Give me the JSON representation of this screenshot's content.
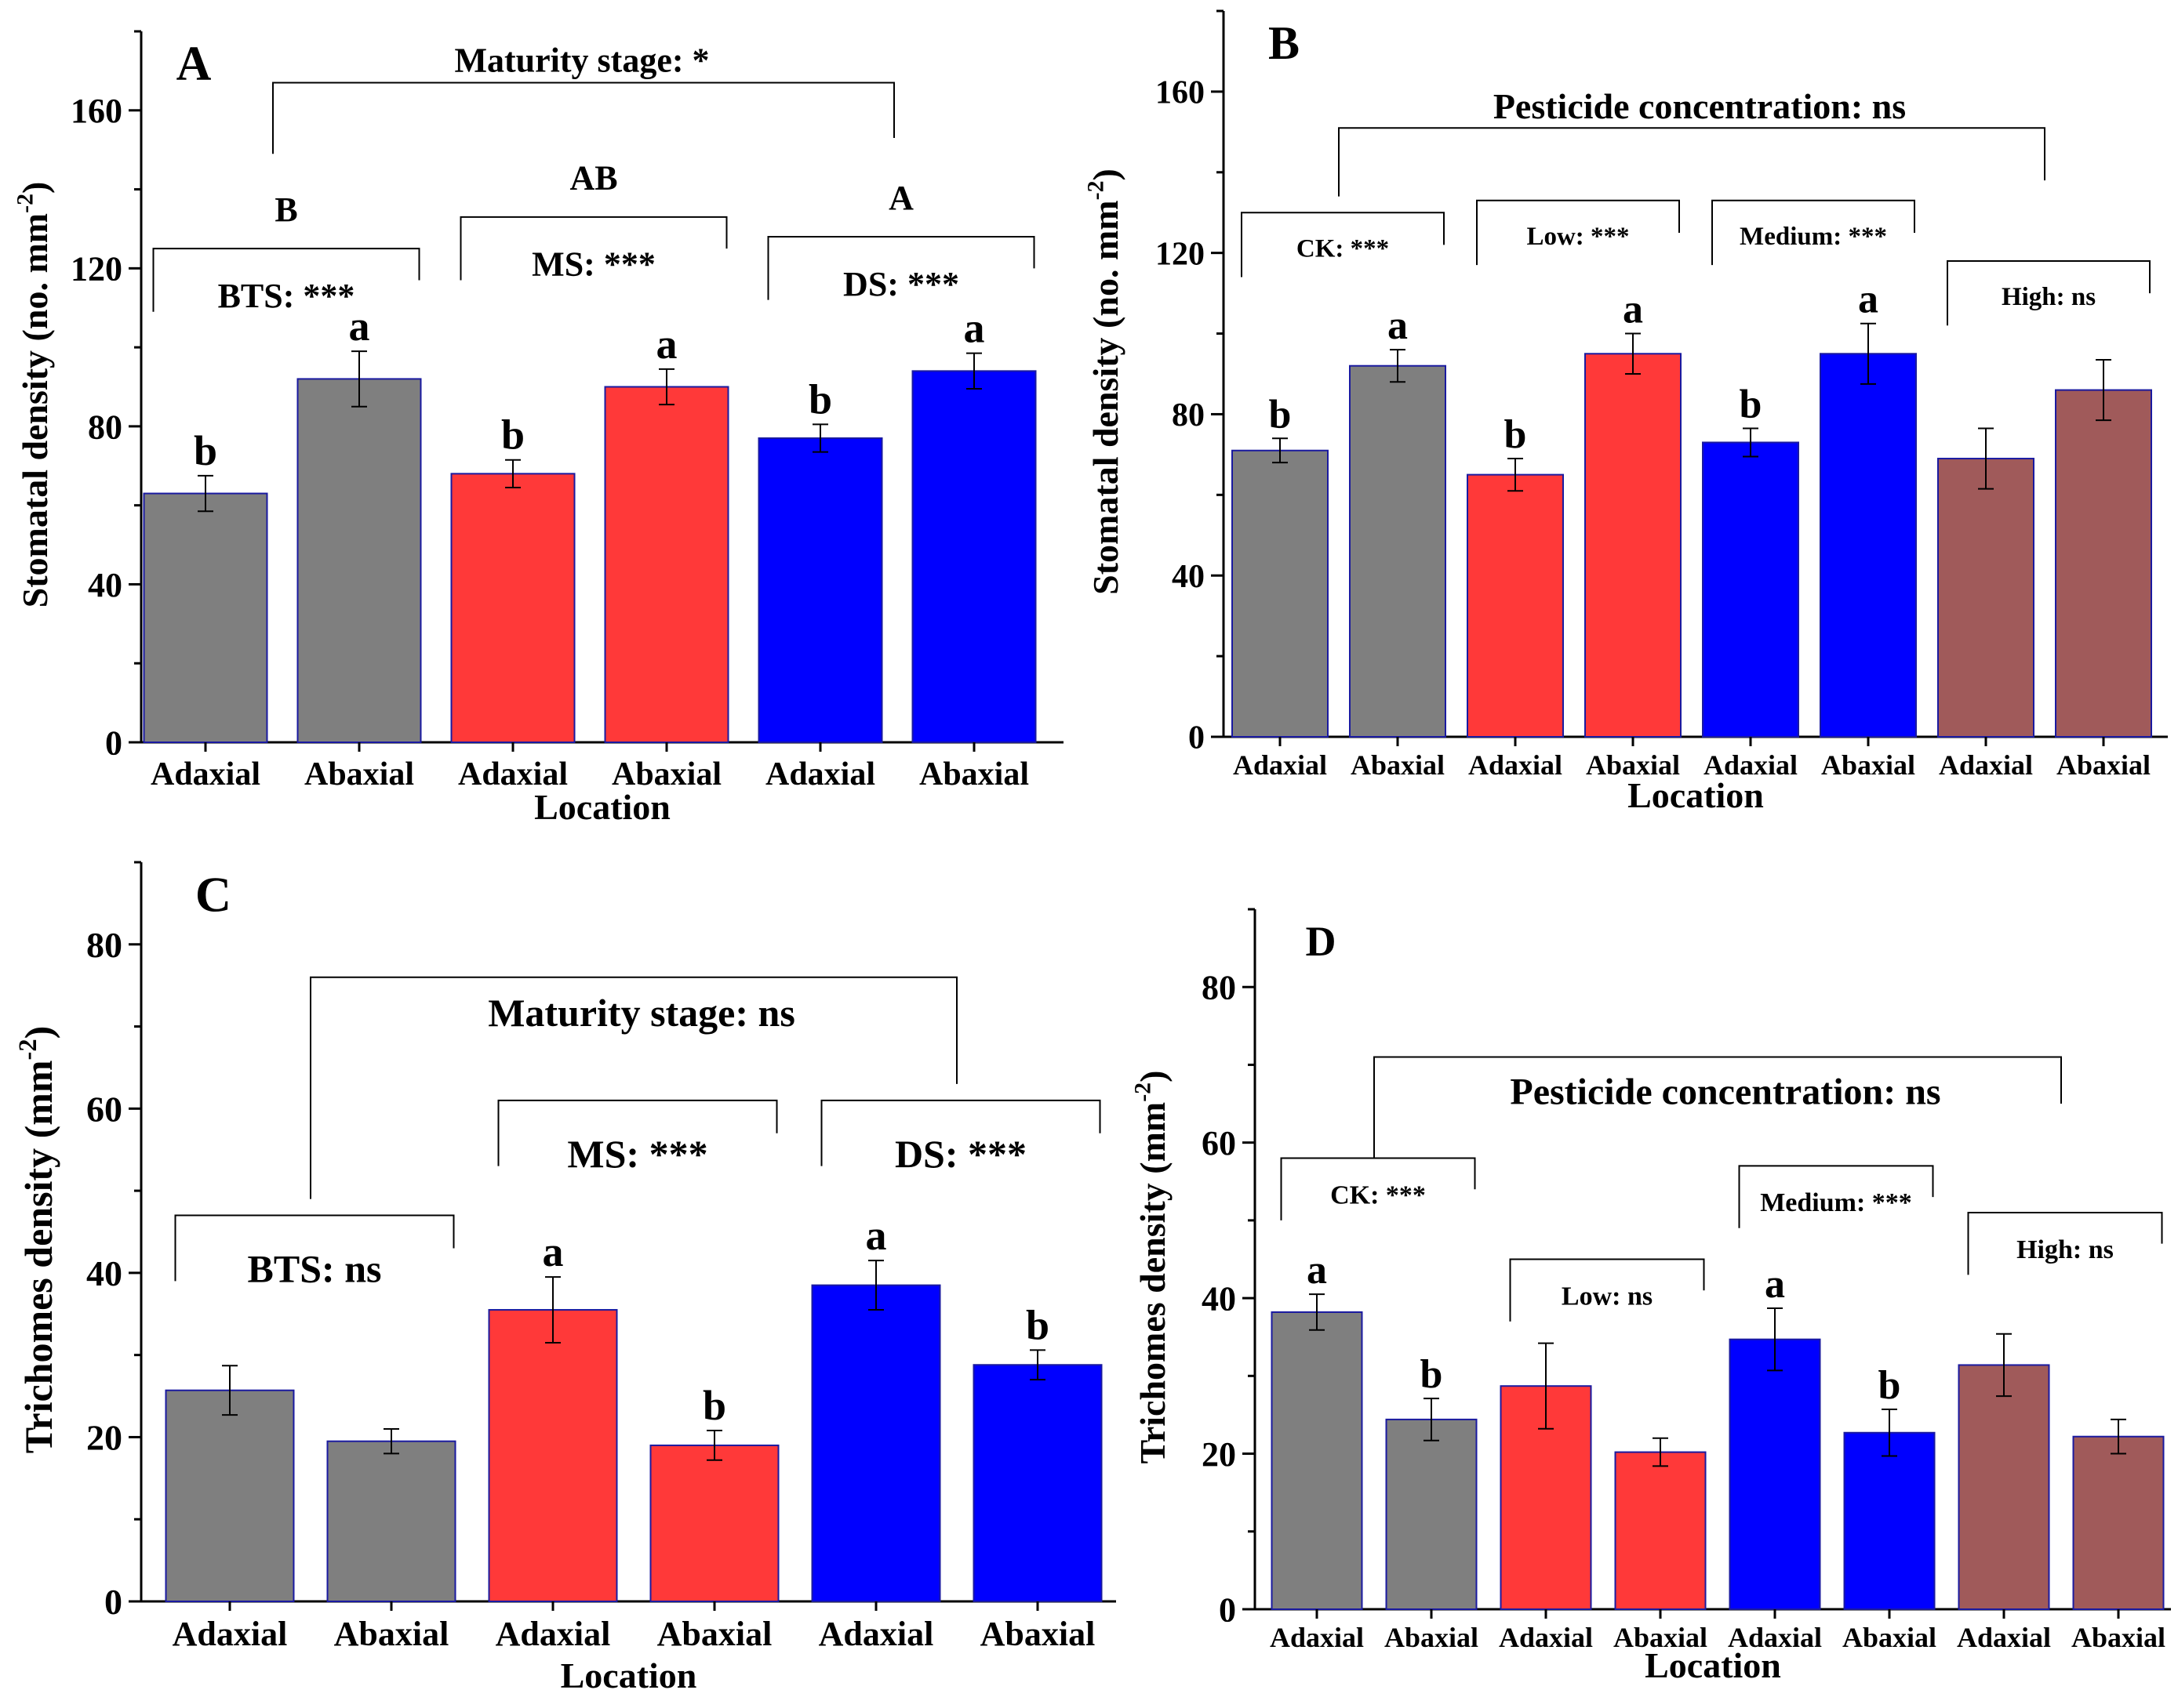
{
  "colors": {
    "gray": "#7f7f7f",
    "red": "#ff3939",
    "blue": "#0000ff",
    "brown": "#a05a5a",
    "edge": "#1a1aa0",
    "axis": "#000000"
  },
  "chart_data": [
    {
      "id": "A",
      "type": "bar",
      "panel_label": "A",
      "xlabel": "Location",
      "ylabel": "Stomatal density (no. mm",
      "ylabel_sup": "-2",
      "ylabel_close": ")",
      "ylim": [
        0,
        180
      ],
      "yticks": [
        "0",
        "40",
        "80",
        "120",
        "160"
      ],
      "categories": [
        "Adaxial",
        "Abaxial",
        "Adaxial",
        "Abaxial",
        "Adaxial",
        "Abaxial"
      ],
      "values": [
        63,
        92,
        68,
        90,
        77,
        94
      ],
      "errors": [
        4.5,
        7,
        3.5,
        4.5,
        3.5,
        4.5
      ],
      "letters": [
        "b",
        "a",
        "b",
        "a",
        "b",
        "a"
      ],
      "bar_colors": [
        "gray",
        "gray",
        "red",
        "red",
        "blue",
        "blue"
      ],
      "groups": [
        {
          "label": "BTS: ***",
          "first": 0,
          "last": 1,
          "top": 125,
          "upper": "B"
        },
        {
          "label": "MS: ***",
          "first": 2,
          "last": 3,
          "top": 133,
          "upper": "AB"
        },
        {
          "label": "DS: ***",
          "first": 4,
          "last": 5,
          "top": 128,
          "upper": "A"
        }
      ],
      "overall": {
        "label": "Maturity stage: *",
        "top": 167,
        "left_end": 149,
        "right_end": 153
      }
    },
    {
      "id": "B",
      "type": "bar",
      "panel_label": "B",
      "xlabel": "Location",
      "ylabel": "Stomatal density (no. mm",
      "ylabel_sup": "-2",
      "ylabel_close": ")",
      "ylim": [
        0,
        180
      ],
      "yticks": [
        "0",
        "40",
        "80",
        "120",
        "160"
      ],
      "categories": [
        "Adaxial",
        "Abaxial",
        "Adaxial",
        "Abaxial",
        "Adaxial",
        "Abaxial",
        "Adaxial",
        "Abaxial"
      ],
      "values": [
        71,
        92,
        65,
        95,
        73,
        95,
        69,
        86
      ],
      "errors": [
        3,
        4,
        4,
        5,
        3.5,
        7.5,
        7.5,
        7.5
      ],
      "letters": [
        "b",
        "a",
        "b",
        "a",
        "b",
        "a",
        "",
        ""
      ],
      "bar_colors": [
        "gray",
        "gray",
        "red",
        "red",
        "blue",
        "blue",
        "brown",
        "brown"
      ],
      "groups": [
        {
          "label": "CK: ***",
          "first": 0,
          "last": 1,
          "top": 130
        },
        {
          "label": "Low: ***",
          "first": 2,
          "last": 3,
          "top": 133
        },
        {
          "label": "Medium: ***",
          "first": 4,
          "last": 5,
          "top": 133
        },
        {
          "label": "High: ns",
          "first": 6,
          "last": 7,
          "top": 118
        }
      ],
      "overall": {
        "label": "Pesticide concentration: ns",
        "top": 151,
        "left_end": 134,
        "right_end": 138
      }
    },
    {
      "id": "C",
      "type": "bar",
      "panel_label": "C",
      "xlabel": "Location",
      "ylabel": "Trichomes density (mm",
      "ylabel_sup": "-2",
      "ylabel_close": ")",
      "ylim": [
        0,
        90
      ],
      "yticks": [
        "0",
        "20",
        "40",
        "60",
        "80"
      ],
      "categories": [
        "Adaxial",
        "Abaxial",
        "Adaxial",
        "Abaxial",
        "Adaxial",
        "Abaxial"
      ],
      "values": [
        25.7,
        19.5,
        35.5,
        19,
        38.5,
        28.8
      ],
      "errors": [
        3,
        1.5,
        4,
        1.8,
        3,
        1.8
      ],
      "letters": [
        "",
        "",
        "a",
        "b",
        "a",
        "b"
      ],
      "bar_colors": [
        "gray",
        "gray",
        "red",
        "red",
        "blue",
        "blue"
      ],
      "groups": [
        {
          "label": "BTS: ns",
          "first": 0,
          "last": 1,
          "top": 47
        },
        {
          "label": "MS: ***",
          "first": 2,
          "last": 3,
          "top": 61
        },
        {
          "label": "DS: ***",
          "first": 4,
          "last": 5,
          "top": 61
        }
      ],
      "overall": {
        "label": "Maturity stage: ns",
        "top": 76,
        "left_end": 49,
        "right_end": 63
      }
    },
    {
      "id": "D",
      "type": "bar",
      "panel_label": "D",
      "xlabel": "Location",
      "ylabel": "Trichomes density (mm",
      "ylabel_sup": "-2",
      "ylabel_close": ")",
      "ylim": [
        0,
        90
      ],
      "yticks": [
        "0",
        "20",
        "40",
        "60",
        "80"
      ],
      "categories": [
        "Adaxial",
        "Abaxial",
        "Adaxial",
        "Abaxial",
        "Adaxial",
        "Abaxial",
        "Adaxial",
        "Abaxial"
      ],
      "values": [
        38.2,
        24.4,
        28.7,
        20.2,
        34.7,
        22.7,
        31.4,
        22.2
      ],
      "errors": [
        2.3,
        2.7,
        5.5,
        1.8,
        4,
        3,
        4,
        2.2
      ],
      "letters": [
        "a",
        "b",
        "",
        "",
        "a",
        "b",
        "",
        ""
      ],
      "bar_colors": [
        "gray",
        "gray",
        "red",
        "red",
        "blue",
        "blue",
        "brown",
        "brown"
      ],
      "groups": [
        {
          "label": "CK: ***",
          "first": 0,
          "last": 1,
          "top": 58
        },
        {
          "label": "Low: ns",
          "first": 2,
          "last": 3,
          "top": 45
        },
        {
          "label": "Medium: ***",
          "first": 4,
          "last": 5,
          "top": 57
        },
        {
          "label": "High: ns",
          "first": 6,
          "last": 7,
          "top": 51
        }
      ],
      "overall": {
        "label": "Pesticide concentration: ns",
        "top": 71,
        "left_end": 58,
        "right_end": 65
      }
    }
  ]
}
